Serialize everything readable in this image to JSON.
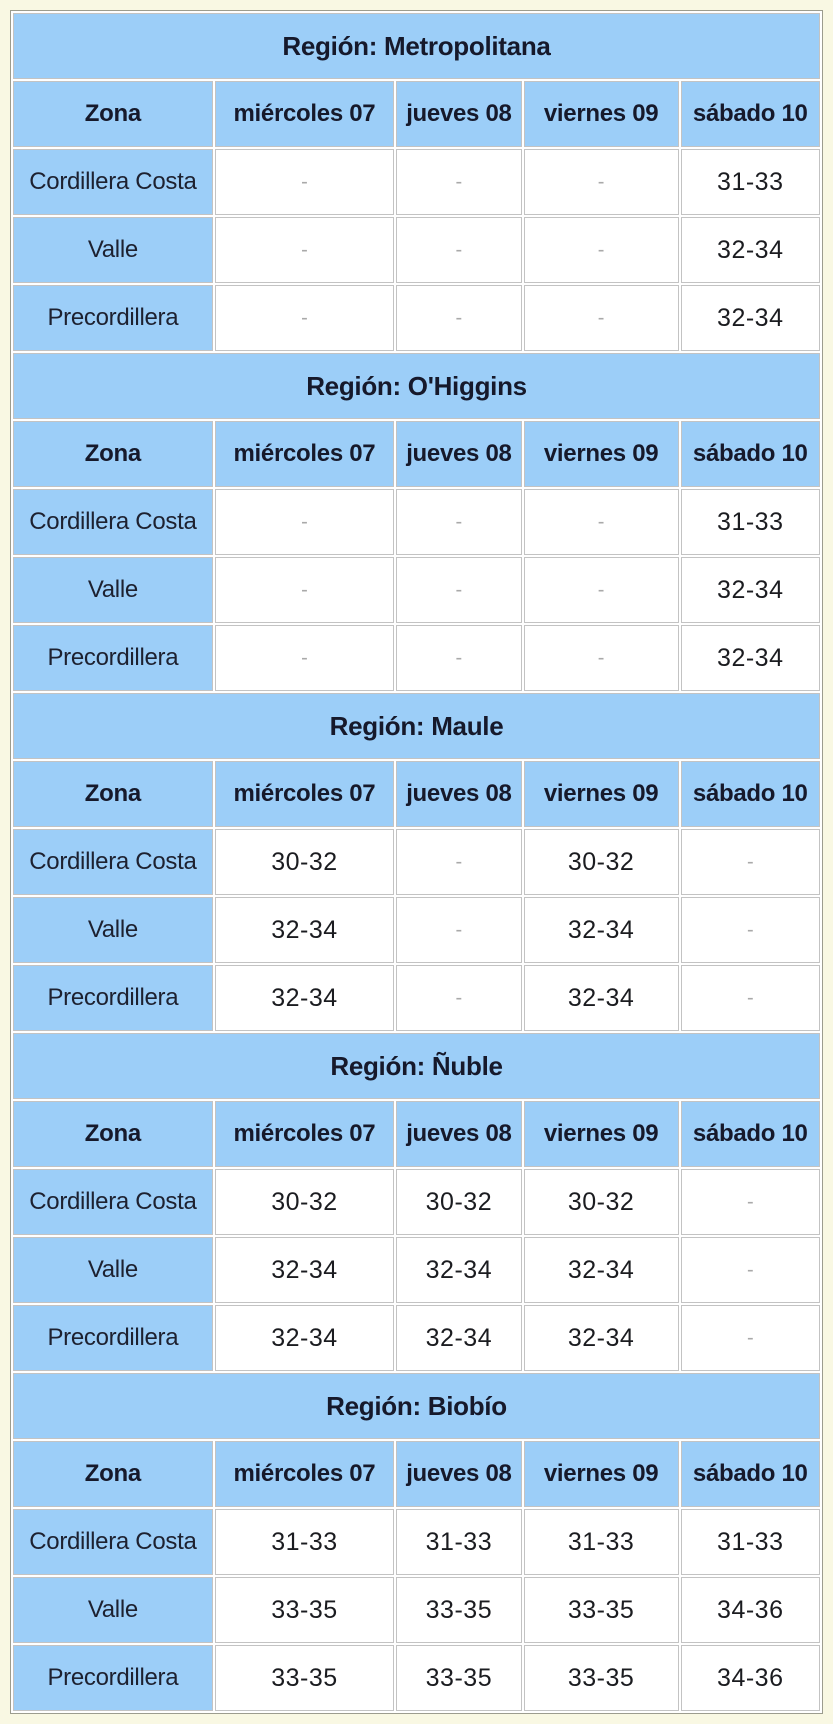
{
  "colors": {
    "page_background": "#F9F8E3",
    "table_background": "#FFFFFF",
    "table_border": "#9C9C8E",
    "cell_border": "#C3C3C3",
    "header_blue": "#9CCEF8",
    "header_text": "#16192B",
    "value_text": "#1B1C20",
    "empty_dash": "#A9A9A9"
  },
  "chart_data": [
    {
      "type": "table",
      "title": "Región: Metropolitana",
      "columns": [
        "Zona",
        "miércoles 07",
        "jueves 08",
        "viernes 09",
        "sábado 10"
      ],
      "rows": [
        [
          "Cordillera Costa",
          "-",
          "-",
          "-",
          "31-33"
        ],
        [
          "Valle",
          "-",
          "-",
          "-",
          "32-34"
        ],
        [
          "Precordillera",
          "-",
          "-",
          "-",
          "32-34"
        ]
      ]
    },
    {
      "type": "table",
      "title": "Región: O'Higgins",
      "columns": [
        "Zona",
        "miércoles 07",
        "jueves 08",
        "viernes 09",
        "sábado 10"
      ],
      "rows": [
        [
          "Cordillera Costa",
          "-",
          "-",
          "-",
          "31-33"
        ],
        [
          "Valle",
          "-",
          "-",
          "-",
          "32-34"
        ],
        [
          "Precordillera",
          "-",
          "-",
          "-",
          "32-34"
        ]
      ]
    },
    {
      "type": "table",
      "title": "Región: Maule",
      "columns": [
        "Zona",
        "miércoles 07",
        "jueves 08",
        "viernes 09",
        "sábado 10"
      ],
      "rows": [
        [
          "Cordillera Costa",
          "30-32",
          "-",
          "30-32",
          "-"
        ],
        [
          "Valle",
          "32-34",
          "-",
          "32-34",
          "-"
        ],
        [
          "Precordillera",
          "32-34",
          "-",
          "32-34",
          "-"
        ]
      ]
    },
    {
      "type": "table",
      "title": "Región: Ñuble",
      "columns": [
        "Zona",
        "miércoles 07",
        "jueves 08",
        "viernes 09",
        "sábado 10"
      ],
      "rows": [
        [
          "Cordillera Costa",
          "30-32",
          "30-32",
          "30-32",
          "-"
        ],
        [
          "Valle",
          "32-34",
          "32-34",
          "32-34",
          "-"
        ],
        [
          "Precordillera",
          "32-34",
          "32-34",
          "32-34",
          "-"
        ]
      ]
    },
    {
      "type": "table",
      "title": "Región: Biobío",
      "columns": [
        "Zona",
        "miércoles 07",
        "jueves 08",
        "viernes 09",
        "sábado 10"
      ],
      "rows": [
        [
          "Cordillera Costa",
          "31-33",
          "31-33",
          "31-33",
          "31-33"
        ],
        [
          "Valle",
          "33-35",
          "33-35",
          "33-35",
          "34-36"
        ],
        [
          "Precordillera",
          "33-35",
          "33-35",
          "33-35",
          "34-36"
        ]
      ]
    }
  ]
}
